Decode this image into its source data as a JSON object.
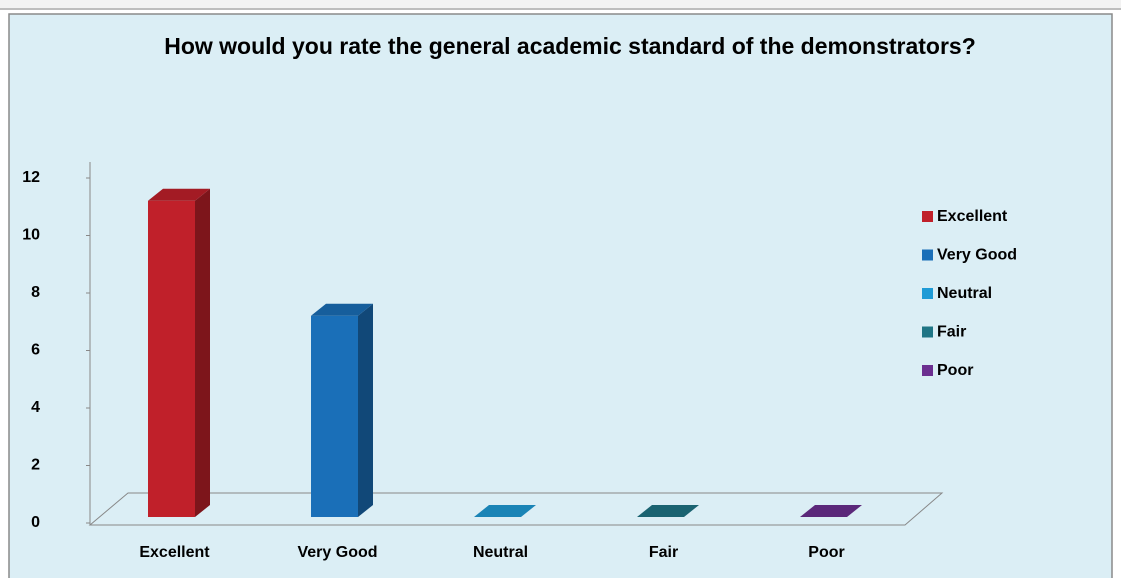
{
  "chart_data": {
    "type": "bar3d",
    "title": "How would you rate the general academic standard of the demonstrators?",
    "categories": [
      "Excellent",
      "Very Good",
      "Neutral",
      "Fair",
      "Poor"
    ],
    "values": [
      11,
      7,
      0,
      0,
      0
    ],
    "colors": [
      "#c0202a",
      "#1a6fb8",
      "#1f9bd6",
      "#1f7585",
      "#6b2f90"
    ],
    "ylim": [
      0,
      12
    ],
    "yticks": [
      0,
      2,
      4,
      6,
      8,
      10,
      12
    ],
    "legend": "right"
  }
}
